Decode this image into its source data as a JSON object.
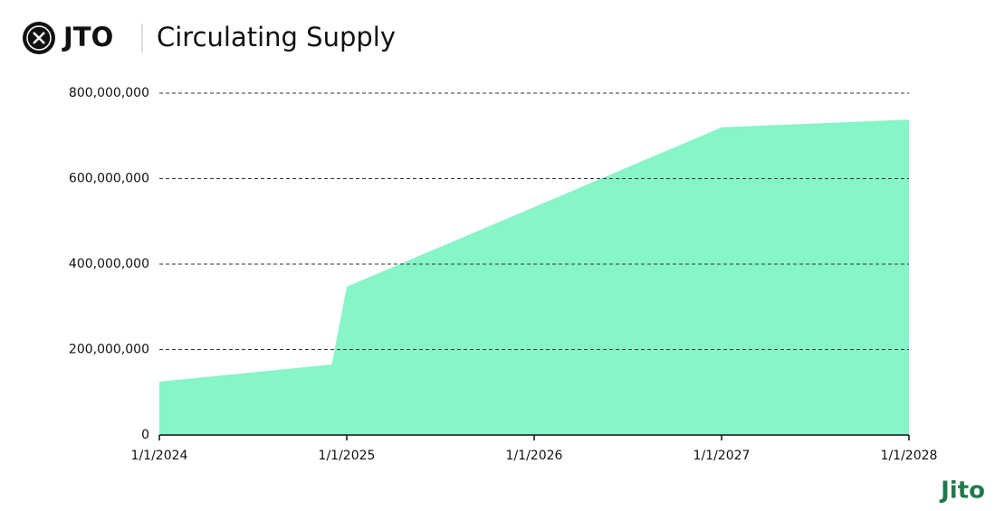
{
  "header": {
    "token": "JTO",
    "title": "Circulating Supply"
  },
  "chart_data": {
    "type": "area",
    "x": [
      2024,
      2024.92,
      2025,
      2027,
      2028
    ],
    "values": [
      125000000,
      165000000,
      347000000,
      720000000,
      738000000
    ],
    "color": "#86f5c8",
    "xlim": [
      2024,
      2028
    ],
    "xticks": [
      {
        "value": 2024,
        "label": "1/1/2024"
      },
      {
        "value": 2025,
        "label": "1/1/2025"
      },
      {
        "value": 2026,
        "label": "1/1/2026"
      },
      {
        "value": 2027,
        "label": "1/1/2027"
      },
      {
        "value": 2028,
        "label": "1/1/2028"
      }
    ],
    "ylim": [
      0,
      800000000
    ],
    "yticks": [
      0,
      {
        "value": 200000000,
        "label": "200,000,000"
      },
      {
        "value": 400000000,
        "label": "400,000,000"
      },
      {
        "value": 600000000,
        "label": "600,000,000"
      },
      {
        "value": 800000000,
        "label": "800,000,000"
      }
    ],
    "grid": true
  },
  "footer": {
    "brand": "Jito"
  }
}
